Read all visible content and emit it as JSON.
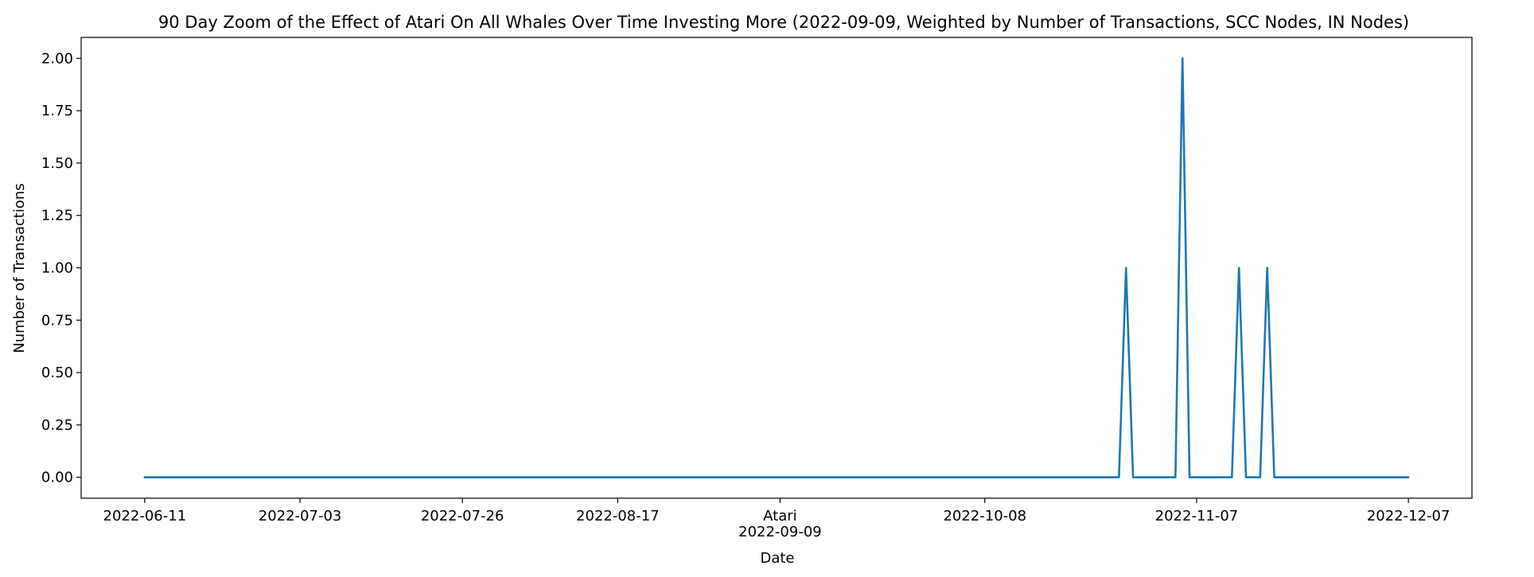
{
  "chart_data": {
    "type": "line",
    "title": "90 Day Zoom of the Effect of Atari On All Whales Over Time Investing More (2022-09-09, Weighted by Number of Transactions, SCC Nodes, IN Nodes)",
    "xlabel": "Date",
    "ylabel": "Number of Transactions",
    "x_range": [
      "2022-06-11",
      "2022-12-07"
    ],
    "xlim": [
      "2022-06-02",
      "2022-12-16"
    ],
    "ylim": [
      -0.1,
      2.1
    ],
    "grid": false,
    "line_color": "#1f77b4",
    "x_ticks": [
      {
        "date": "2022-06-11",
        "label": "2022-06-11"
      },
      {
        "date": "2022-07-03",
        "label": "2022-07-03"
      },
      {
        "date": "2022-07-26",
        "label": "2022-07-26"
      },
      {
        "date": "2022-08-17",
        "label": "2022-08-17"
      },
      {
        "date": "2022-09-09",
        "label": "Atari",
        "label2": "2022-09-09"
      },
      {
        "date": "2022-10-08",
        "label": "2022-10-08"
      },
      {
        "date": "2022-11-07",
        "label": "2022-11-07"
      },
      {
        "date": "2022-12-07",
        "label": "2022-12-07"
      }
    ],
    "y_ticks": [
      {
        "value": 0.0,
        "label": "0.00"
      },
      {
        "value": 0.25,
        "label": "0.25"
      },
      {
        "value": 0.5,
        "label": "0.50"
      },
      {
        "value": 0.75,
        "label": "0.75"
      },
      {
        "value": 1.0,
        "label": "1.00"
      },
      {
        "value": 1.25,
        "label": "1.25"
      },
      {
        "value": 1.5,
        "label": "1.50"
      },
      {
        "value": 1.75,
        "label": "1.75"
      },
      {
        "value": 2.0,
        "label": "2.00"
      }
    ],
    "series": [
      {
        "points": [
          {
            "x": "2022-06-11",
            "y": 0
          },
          {
            "x": "2022-10-27",
            "y": 0
          },
          {
            "x": "2022-10-28",
            "y": 1
          },
          {
            "x": "2022-10-29",
            "y": 0
          },
          {
            "x": "2022-11-04",
            "y": 0
          },
          {
            "x": "2022-11-05",
            "y": 2
          },
          {
            "x": "2022-11-06",
            "y": 0
          },
          {
            "x": "2022-11-12",
            "y": 0
          },
          {
            "x": "2022-11-13",
            "y": 1
          },
          {
            "x": "2022-11-14",
            "y": 0
          },
          {
            "x": "2022-11-16",
            "y": 0
          },
          {
            "x": "2022-11-17",
            "y": 1
          },
          {
            "x": "2022-11-18",
            "y": 0
          },
          {
            "x": "2022-12-07",
            "y": 0
          }
        ]
      }
    ]
  }
}
